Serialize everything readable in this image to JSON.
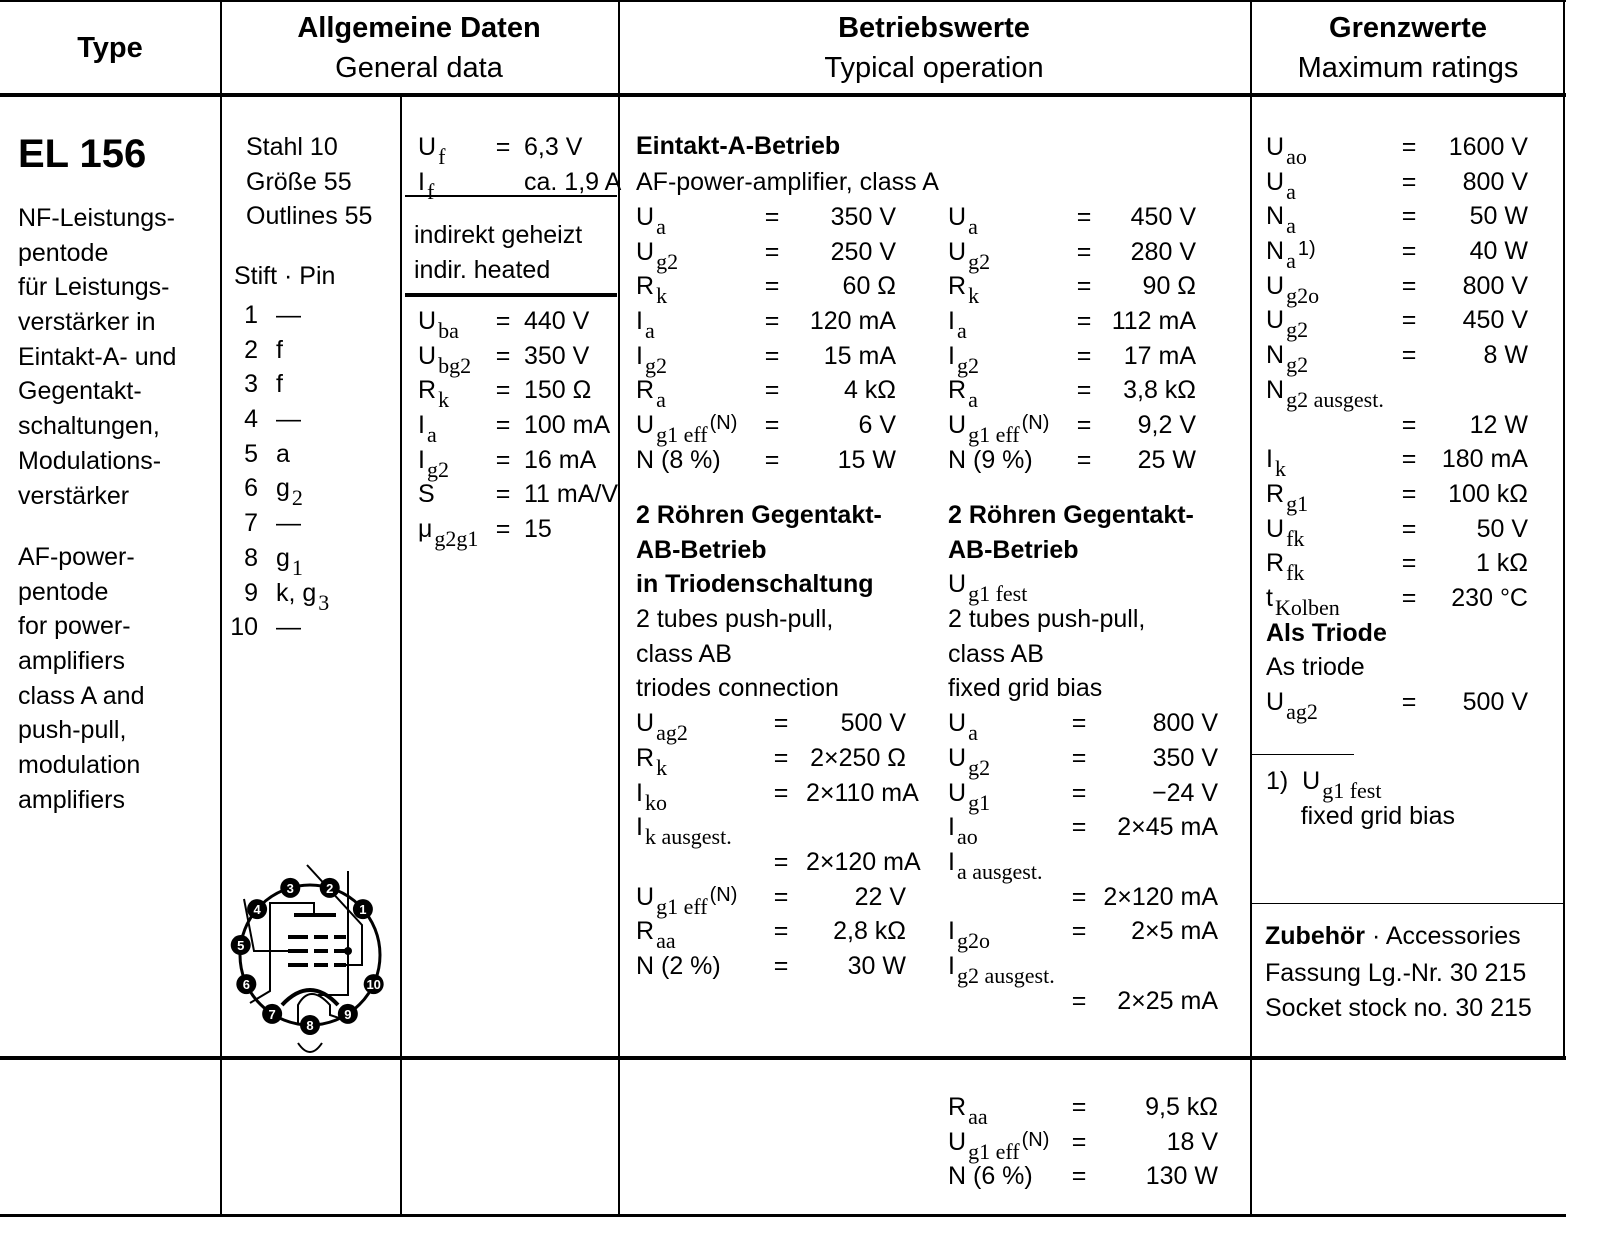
{
  "header": {
    "type": "Type",
    "general_de": "Allgemeine Daten",
    "general_en": "General data",
    "operation_de": "Betriebswerte",
    "operation_en": "Typical operation",
    "max_de": "Grenzwerte",
    "max_en": "Maximum ratings"
  },
  "tube": {
    "name": "EL 156",
    "desc_de": [
      "NF-Leistungs-",
      "pentode",
      "für Leistungs-",
      "verstärker in",
      "Eintakt-A- und",
      "Gegentakt-",
      "schaltungen,",
      "Modulations-",
      "verstärker"
    ],
    "desc_en": [
      "AF-power-",
      "pentode",
      "for power-",
      "amplifiers",
      "class A and",
      "push-pull,",
      "modulation",
      "amplifiers"
    ]
  },
  "base": {
    "lines": [
      "Stahl 10",
      "Größe 55",
      "Outlines 55"
    ],
    "pin_title": "Stift · Pin",
    "pins": [
      {
        "n": "1",
        "l": "—"
      },
      {
        "n": "2",
        "l": "f"
      },
      {
        "n": "3",
        "l": "f"
      },
      {
        "n": "4",
        "l": "—"
      },
      {
        "n": "5",
        "l": "a"
      },
      {
        "n": "6",
        "l": "g",
        "s": "2"
      },
      {
        "n": "7",
        "l": "—"
      },
      {
        "n": "8",
        "l": "g",
        "s": "1"
      },
      {
        "n": "9",
        "l": "k, g",
        "s": "3"
      },
      {
        "n": "10",
        "l": "—"
      }
    ],
    "diagram_pins": [
      "1",
      "2",
      "3",
      "4",
      "5",
      "6",
      "7",
      "8",
      "9",
      "10"
    ]
  },
  "general": {
    "heater": [
      {
        "sym": "U",
        "sub": "f",
        "eq": "=",
        "val": "6,3 V"
      },
      {
        "sym": "I",
        "sub": "f",
        "eq": "",
        "val": "ca. 1,9 A"
      }
    ],
    "heating": [
      "indirekt geheizt",
      "indir. heated"
    ],
    "values": [
      {
        "sym": "U",
        "sub": "ba",
        "eq": "=",
        "val": "440 V"
      },
      {
        "sym": "U",
        "sub": "bg2",
        "eq": "=",
        "val": "350 V"
      },
      {
        "sym": "R",
        "sub": "k",
        "eq": "=",
        "val": "150 Ω"
      },
      {
        "sym": "I",
        "sub": "a",
        "eq": "=",
        "val": "100 mA"
      },
      {
        "sym": "I",
        "sub": "g2",
        "eq": "=",
        "val": "16 mA"
      },
      {
        "sym": "S",
        "eq": "=",
        "val": "11 mA/V"
      },
      {
        "sym": "μ",
        "sub": "g2g1",
        "eq": "=",
        "val": "15"
      }
    ]
  },
  "operation": {
    "class_a_title": "Eintakt-A-Betrieb",
    "class_a_en": "AF-power-amplifier, class A",
    "class_a_left": [
      {
        "sym": "U",
        "sub": "a",
        "eq": "=",
        "val": "350 V"
      },
      {
        "sym": "U",
        "sub": "g2",
        "eq": "=",
        "val": "250 V"
      },
      {
        "sym": "R",
        "sub": "k",
        "eq": "=",
        "val": "60 Ω"
      },
      {
        "sym": "I",
        "sub": "a",
        "eq": "=",
        "val": "120 mA"
      },
      {
        "sym": "I",
        "sub": "g2",
        "eq": "=",
        "val": "15 mA"
      },
      {
        "sym": "R",
        "sub": "a",
        "eq": "=",
        "val": "4 kΩ"
      },
      {
        "sym": "U",
        "sub": "g1 eff",
        "sup": "(N)",
        "eq": "=",
        "val": "6 V"
      },
      {
        "sym": "N (8 %)",
        "eq": "=",
        "val": "15 W"
      }
    ],
    "class_a_right": [
      {
        "sym": "U",
        "sub": "a",
        "eq": "=",
        "val": "450 V"
      },
      {
        "sym": "U",
        "sub": "g2",
        "eq": "=",
        "val": "280 V"
      },
      {
        "sym": "R",
        "sub": "k",
        "eq": "=",
        "val": "90 Ω"
      },
      {
        "sym": "I",
        "sub": "a",
        "eq": "=",
        "val": "112 mA"
      },
      {
        "sym": "I",
        "sub": "g2",
        "eq": "=",
        "val": "17 mA"
      },
      {
        "sym": "R",
        "sub": "a",
        "eq": "=",
        "val": "3,8 kΩ"
      },
      {
        "sym": "U",
        "sub": "g1 eff",
        "sup": "(N)",
        "eq": "=",
        "val": "9,2 V"
      },
      {
        "sym": "N (9 %)",
        "eq": "=",
        "val": "25 W"
      }
    ],
    "pp_left": [
      {
        "text": "2 Röhren Gegentakt-",
        "bold": true
      },
      {
        "text": "AB-Betrieb",
        "bold": true
      },
      {
        "text": "in Triodenschaltung",
        "bold": true
      },
      {
        "text": "2 tubes push-pull,"
      },
      {
        "text": "class AB"
      },
      {
        "text": "triodes connection"
      },
      {
        "sym": "U",
        "sub": "ag2",
        "eq": "=",
        "val": "500 V"
      },
      {
        "sym": "R",
        "sub": "k",
        "eq": "=",
        "val": "2×250 Ω"
      },
      {
        "sym": "I",
        "sub": "ko",
        "eq": "=",
        "val": "2×110 mA"
      },
      {
        "sym": "I",
        "sub": "k ausgest."
      },
      {
        "sym": "",
        "eq": "=",
        "val": "2×120 mA"
      },
      {
        "sym": "U",
        "sub": "g1 eff",
        "sup": "(N)",
        "eq": "=",
        "val": "22 V"
      },
      {
        "sym": "R",
        "sub": "aa",
        "eq": "=",
        "val": "2,8 kΩ"
      },
      {
        "sym": "N (2 %)",
        "eq": "=",
        "val": "30 W"
      }
    ],
    "pp_right": [
      {
        "text": "2 Röhren Gegentakt-",
        "bold": true
      },
      {
        "text": "AB-Betrieb",
        "bold": true
      },
      {
        "sym": "U",
        "sub": "g1 fest"
      },
      {
        "text": "2 tubes push-pull,"
      },
      {
        "text": "class AB"
      },
      {
        "text": "fixed grid bias"
      },
      {
        "sym": "U",
        "sub": "a",
        "eq": "=",
        "val": "800 V"
      },
      {
        "sym": "U",
        "sub": "g2",
        "eq": "=",
        "val": "350 V"
      },
      {
        "sym": "U",
        "sub": "g1",
        "eq": "=",
        "val": "−24 V"
      },
      {
        "sym": "I",
        "sub": "ao",
        "eq": "=",
        "val": "2×45 mA"
      },
      {
        "sym": "I",
        "sub": "a ausgest."
      },
      {
        "sym": "",
        "eq": "=",
        "val": "2×120 mA"
      },
      {
        "sym": "I",
        "sub": "g2o",
        "eq": "=",
        "val": "2×5 mA"
      },
      {
        "sym": "I",
        "sub": "g2 ausgest."
      },
      {
        "sym": "",
        "eq": "=",
        "val": "2×25 mA"
      }
    ],
    "pp_right_cont": [
      {
        "sym": "R",
        "sub": "aa",
        "eq": "=",
        "val": "9,5 kΩ"
      },
      {
        "sym": "U",
        "sub": "g1 eff",
        "sup": "(N)",
        "eq": "=",
        "val": "18 V"
      },
      {
        "sym": "N (6 %)",
        "eq": "=",
        "val": "130 W"
      }
    ]
  },
  "max": {
    "values": [
      {
        "sym": "U",
        "sub": "ao",
        "eq": "=",
        "val": "1600 V"
      },
      {
        "sym": "U",
        "sub": "a",
        "eq": "=",
        "val": "800 V"
      },
      {
        "sym": "N",
        "sub": "a",
        "eq": "=",
        "val": "50 W"
      },
      {
        "sym": "N",
        "sub": "a",
        "sup": "1)",
        "eq": "=",
        "val": "40 W"
      },
      {
        "sym": "U",
        "sub": "g2o",
        "eq": "=",
        "val": "800 V"
      },
      {
        "sym": "U",
        "sub": "g2",
        "eq": "=",
        "val": "450 V"
      },
      {
        "sym": "N",
        "sub": "g2",
        "eq": "=",
        "val": "8 W"
      },
      {
        "sym": "N",
        "sub": "g2 ausgest."
      },
      {
        "sym": "",
        "eq": "=",
        "val": "12 W"
      },
      {
        "sym": "I",
        "sub": "k",
        "eq": "=",
        "val": "180 mA"
      },
      {
        "sym": "R",
        "sub": "g1",
        "eq": "=",
        "val": "100 kΩ"
      },
      {
        "sym": "U",
        "sub": "fk",
        "eq": "=",
        "val": "50 V"
      },
      {
        "sym": "R",
        "sub": "fk",
        "eq": "=",
        "val": "1 kΩ"
      },
      {
        "sym": "t",
        "sub": "Kolben",
        "eq": "=",
        "val": "230 °C"
      },
      {
        "text": "Als Triode",
        "bold": true
      },
      {
        "text": "As triode"
      },
      {
        "sym": "U",
        "sub": "ag2",
        "eq": "=",
        "val": "500 V"
      }
    ],
    "footnote": [
      {
        "sym": "1)  U",
        "sub": "g1 fest"
      },
      {
        "text": "     fixed grid bias"
      }
    ],
    "accessories_de": "Zubehör",
    "accessories_en": "· Accessories",
    "accessories_lines": [
      "Fassung Lg.-Nr. 30 215",
      "Socket stock no. 30 215"
    ]
  }
}
